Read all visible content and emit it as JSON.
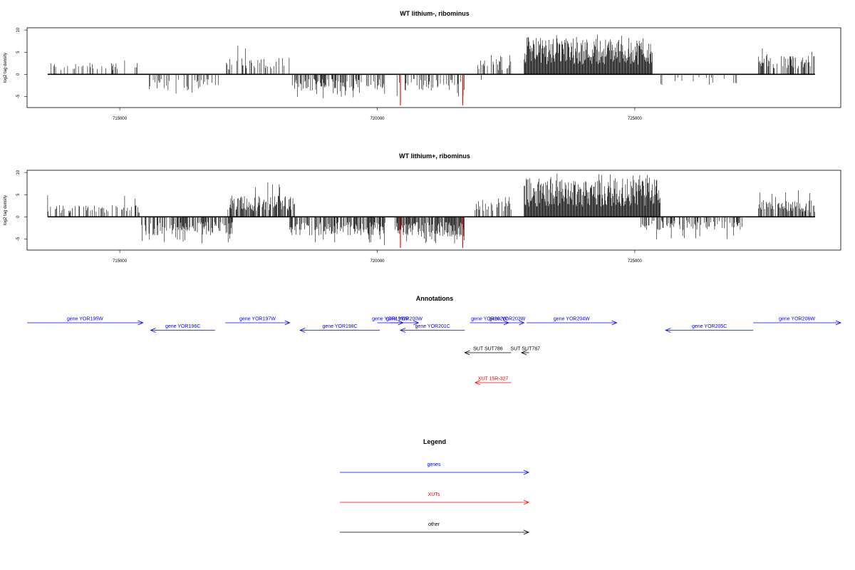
{
  "chart_data": [
    {
      "type": "bar",
      "title": "WT lithium-, ribominus",
      "ylabel": "log2 tag density",
      "xlim": [
        713200,
        729000
      ],
      "ylim": [
        -7.5,
        10.5
      ],
      "xticks": [
        715000,
        720000,
        725000
      ],
      "xtick_labels": [
        "715000",
        "720000",
        "725000"
      ],
      "yticks": [
        -5,
        0,
        5,
        10
      ],
      "ytick_labels": [
        "-5",
        "0",
        "5",
        "10"
      ],
      "colors": {
        "signal": "#000000",
        "highlight": "#ff0000"
      },
      "highlights": [
        {
          "x": 720450,
          "y": -7.0
        },
        {
          "x": 721660,
          "y": -7.0
        }
      ],
      "segments": [
        {
          "start": 713600,
          "end": 715450,
          "strand": "+",
          "mean": 1.8,
          "max": 4.0,
          "density": 0.25
        },
        {
          "start": 715550,
          "end": 717050,
          "strand": "-",
          "mean": 2.4,
          "max": 5.5,
          "density": 0.3
        },
        {
          "start": 717050,
          "end": 718300,
          "strand": "+",
          "mean": 2.5,
          "max": 6.5,
          "density": 0.35
        },
        {
          "start": 718350,
          "end": 720150,
          "strand": "-",
          "mean": 2.6,
          "max": 5.5,
          "density": 0.55
        },
        {
          "start": 720350,
          "end": 721700,
          "strand": "-",
          "mean": 2.5,
          "max": 5.5,
          "density": 0.35
        },
        {
          "start": 721950,
          "end": 722600,
          "strand": "+",
          "mean": 2.2,
          "max": 4.5,
          "density": 0.3
        },
        {
          "start": 722000,
          "end": 722600,
          "strand": "-",
          "mean": 1.0,
          "max": 2.5,
          "density": 0.05
        },
        {
          "start": 722850,
          "end": 725350,
          "strand": "+",
          "mean": 5.5,
          "max": 9.0,
          "density": 1.0
        },
        {
          "start": 725450,
          "end": 727100,
          "strand": "-",
          "mean": 1.6,
          "max": 5.0,
          "density": 0.08
        },
        {
          "start": 727400,
          "end": 728500,
          "strand": "+",
          "mean": 2.8,
          "max": 6.0,
          "density": 0.5
        }
      ]
    },
    {
      "type": "bar",
      "title": "WT lithium+, ribominus",
      "ylabel": "log2 tag density",
      "xlim": [
        713200,
        729000
      ],
      "ylim": [
        -7.5,
        10.5
      ],
      "xticks": [
        715000,
        720000,
        725000
      ],
      "xtick_labels": [
        "715000",
        "720000",
        "725000"
      ],
      "yticks": [
        -5,
        0,
        5,
        10
      ],
      "ytick_labels": [
        "-5",
        "0",
        "5",
        "10"
      ],
      "colors": {
        "signal": "#000000",
        "highlight": "#ff0000"
      },
      "highlights": [
        {
          "x": 720450,
          "y": -7.0
        },
        {
          "x": 721660,
          "y": -7.0
        }
      ],
      "segments": [
        {
          "start": 713600,
          "end": 715400,
          "strand": "+",
          "mean": 1.8,
          "max": 5.0,
          "density": 0.35
        },
        {
          "start": 715400,
          "end": 717200,
          "strand": "-",
          "mean": 2.8,
          "max": 6.0,
          "density": 0.6
        },
        {
          "start": 717100,
          "end": 718400,
          "strand": "+",
          "mean": 3.2,
          "max": 8.0,
          "density": 0.7
        },
        {
          "start": 718300,
          "end": 720150,
          "strand": "-",
          "mean": 2.8,
          "max": 6.5,
          "density": 0.7
        },
        {
          "start": 720350,
          "end": 721700,
          "strand": "-",
          "mean": 3.0,
          "max": 6.5,
          "density": 0.85
        },
        {
          "start": 721900,
          "end": 722600,
          "strand": "+",
          "mean": 2.6,
          "max": 4.5,
          "density": 0.4
        },
        {
          "start": 722850,
          "end": 725500,
          "strand": "+",
          "mean": 5.8,
          "max": 10.0,
          "density": 1.0
        },
        {
          "start": 725100,
          "end": 727100,
          "strand": "-",
          "mean": 2.0,
          "max": 5.5,
          "density": 0.4
        },
        {
          "start": 727400,
          "end": 728500,
          "strand": "+",
          "mean": 2.5,
          "max": 6.0,
          "density": 0.5
        }
      ]
    }
  ],
  "annotations": {
    "title": "Annotations",
    "features": [
      {
        "label": "gene YOR195W",
        "type": "gene",
        "start": 713200,
        "end": 715450,
        "strand": "+",
        "row": 0
      },
      {
        "label": "gene YOR196C",
        "type": "gene",
        "start": 715600,
        "end": 716850,
        "strand": "-",
        "row": 1
      },
      {
        "label": "gene YOR197W",
        "type": "gene",
        "start": 717050,
        "end": 718300,
        "strand": "+",
        "row": 0
      },
      {
        "label": "gene YOR198C",
        "type": "gene",
        "start": 718500,
        "end": 720050,
        "strand": "-",
        "row": 1
      },
      {
        "label": "gene YOR199W",
        "type": "gene",
        "start": 720000,
        "end": 720500,
        "strand": "+",
        "row": 0
      },
      {
        "label": "gene YOR200W",
        "type": "gene",
        "start": 720250,
        "end": 720800,
        "strand": "+",
        "row": 0
      },
      {
        "label": "gene YOR201C",
        "type": "gene",
        "start": 720450,
        "end": 721700,
        "strand": "-",
        "row": 1
      },
      {
        "label": "gene YOR202W",
        "type": "gene",
        "start": 721800,
        "end": 722550,
        "strand": "+",
        "row": 0
      },
      {
        "label": "gene YOR203W",
        "type": "gene",
        "start": 722200,
        "end": 722850,
        "strand": "+",
        "row": 0
      },
      {
        "label": "gene YOR204W",
        "type": "gene",
        "start": 722900,
        "end": 724650,
        "strand": "+",
        "row": 0
      },
      {
        "label": "gene YOR205C",
        "type": "gene",
        "start": 725600,
        "end": 727300,
        "strand": "-",
        "row": 1
      },
      {
        "label": "gene YOR206W",
        "type": "gene",
        "start": 727300,
        "end": 729000,
        "strand": "+",
        "row": 0
      },
      {
        "label": "SUT SUT786",
        "type": "other",
        "start": 721700,
        "end": 722600,
        "strand": "-",
        "row": 4
      },
      {
        "label": "SUT SUT787",
        "type": "other",
        "start": 722800,
        "end": 722950,
        "strand": "-",
        "row": 4
      },
      {
        "label": "XUT 15R-327",
        "type": "xut",
        "start": 721900,
        "end": 722600,
        "strand": "-",
        "row": 8
      }
    ]
  },
  "legend": {
    "title": "Legend",
    "items": [
      {
        "label": "genes",
        "color": "#0000ff"
      },
      {
        "label": "XUTs",
        "color": "#ff0000"
      },
      {
        "label": "other",
        "color": "#000000"
      }
    ]
  }
}
